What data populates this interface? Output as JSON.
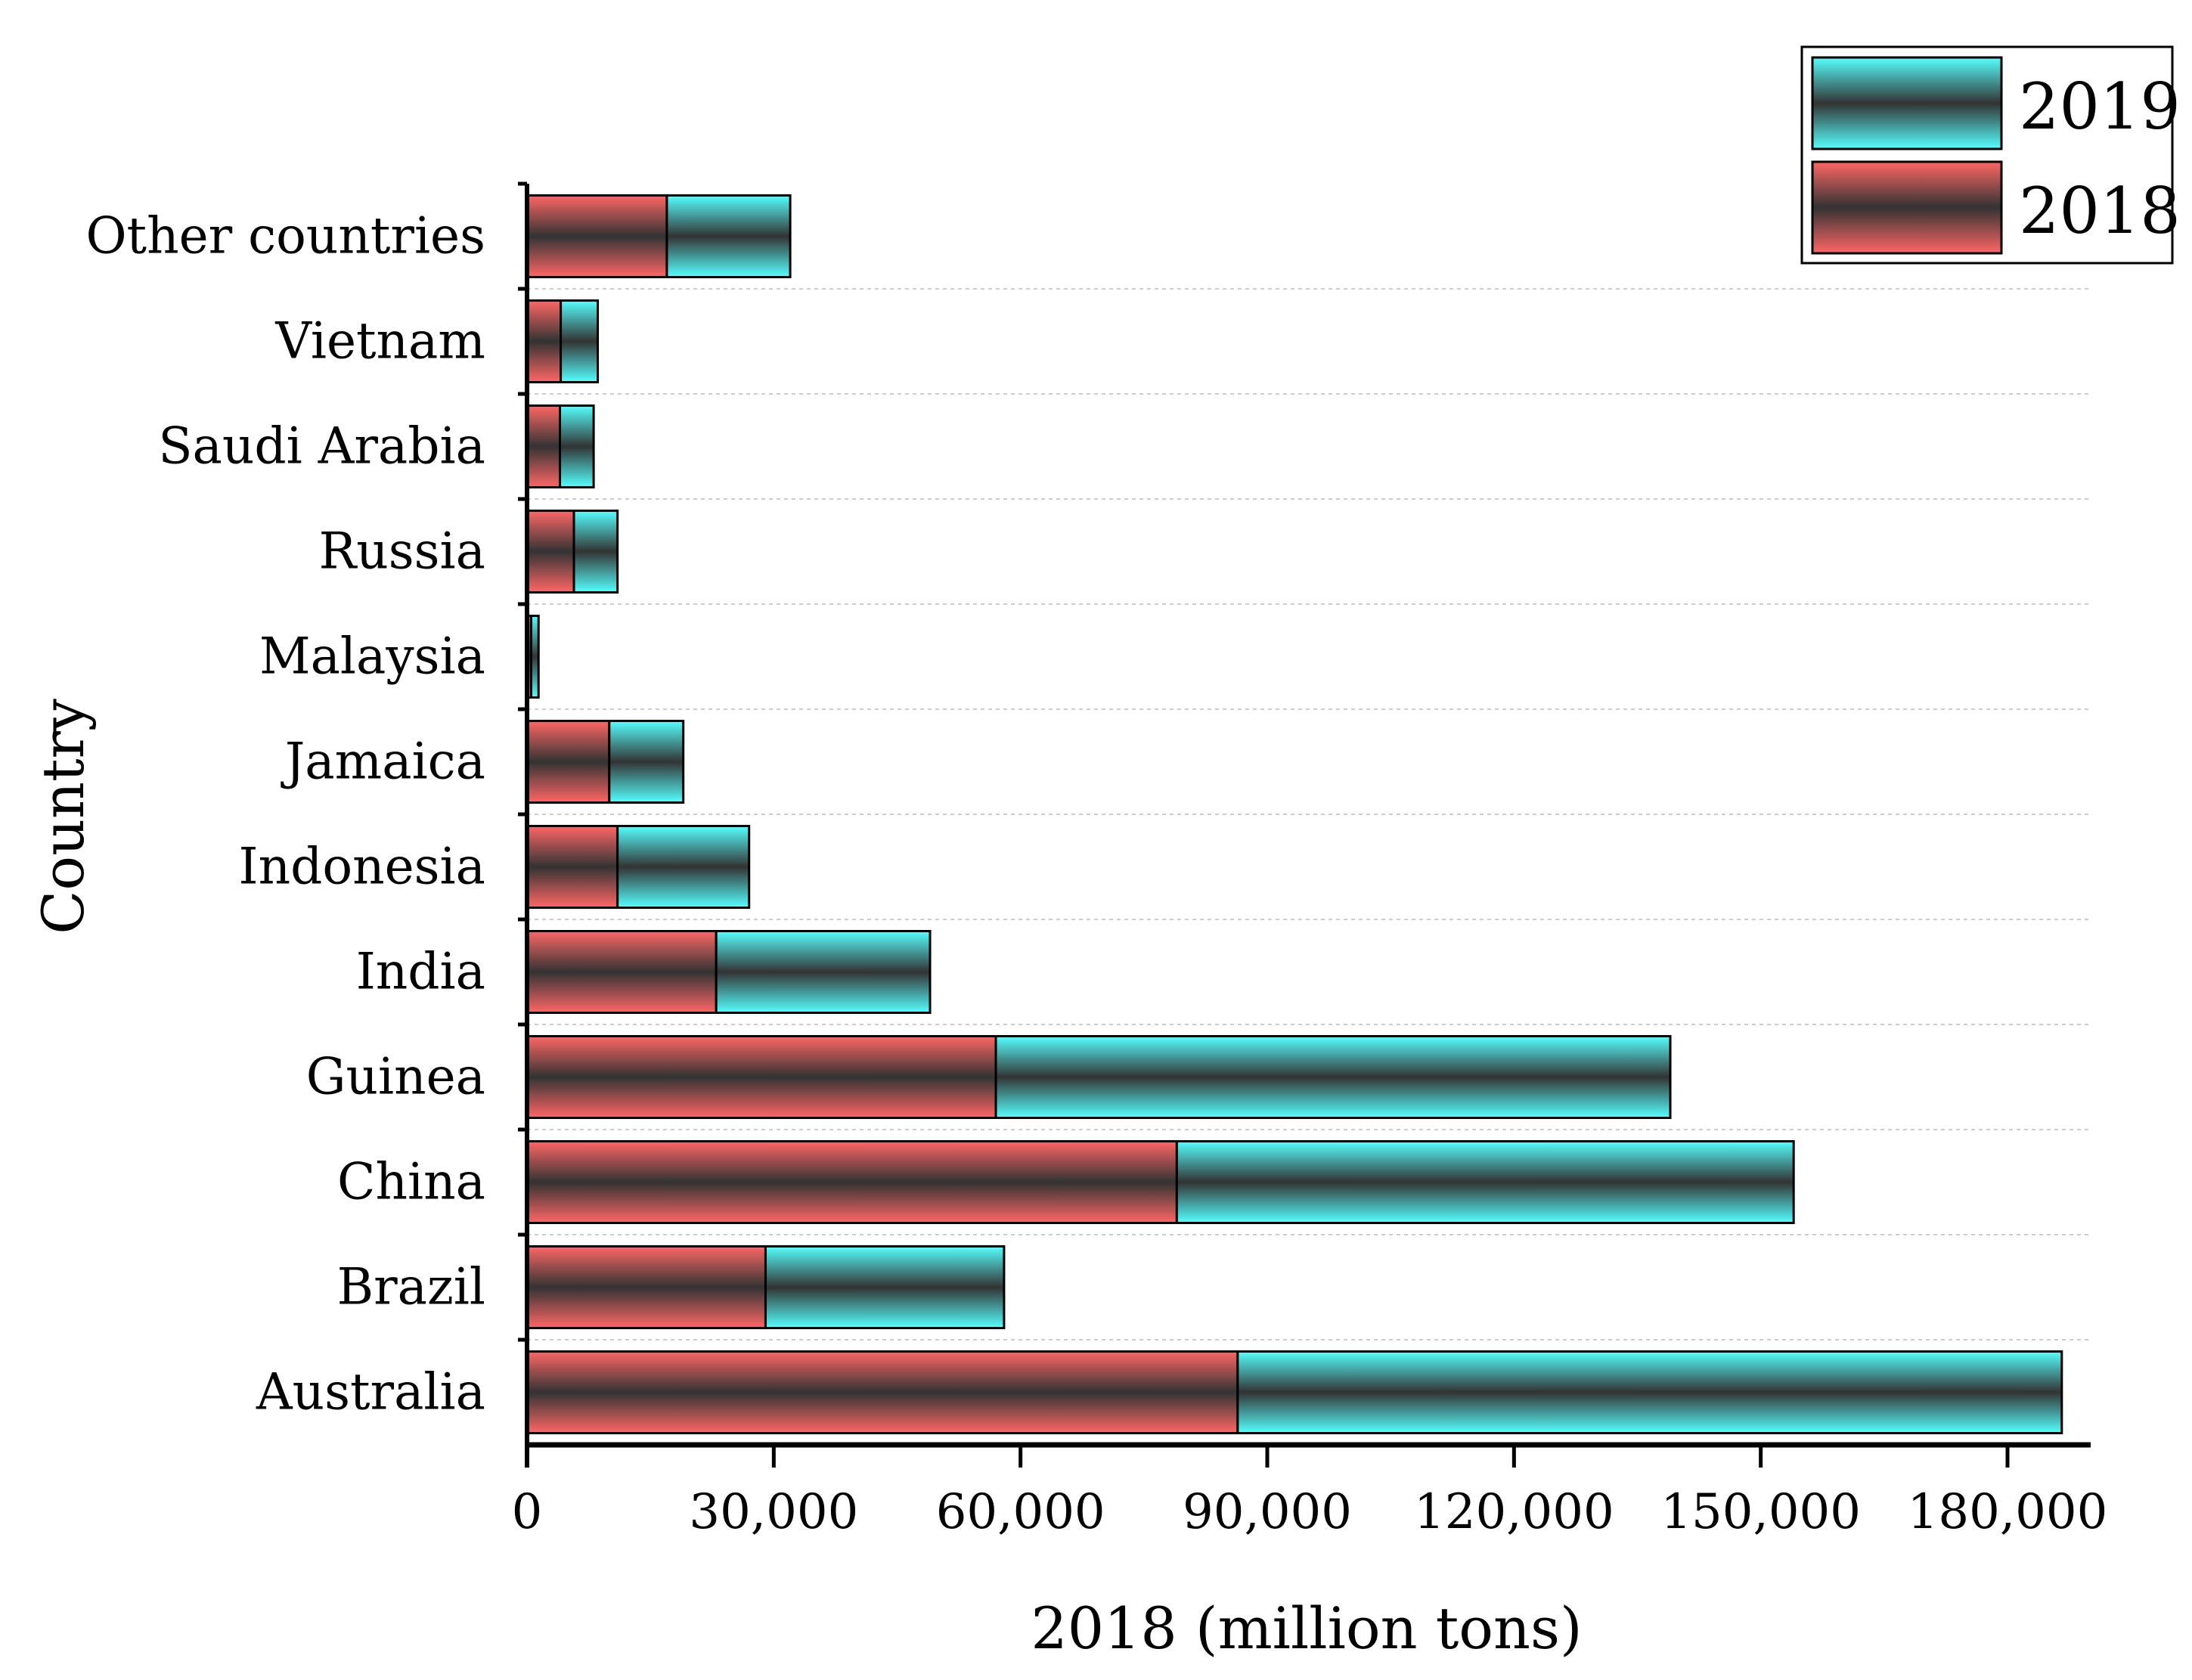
{
  "chart_data": {
    "type": "bar",
    "orientation": "horizontal",
    "stacked": true,
    "title": "",
    "xlabel": "2018 (million tons)",
    "ylabel": "Country",
    "xlim": [
      0,
      186000
    ],
    "xticks": [
      0,
      30000,
      60000,
      90000,
      120000,
      150000,
      180000
    ],
    "xtick_labels": [
      "0",
      "30,000",
      "60,000",
      "90,000",
      "120,000",
      "150,000",
      "180,000"
    ],
    "categories": [
      "Australia",
      "Brazil",
      "China",
      "Guinea",
      "India",
      "Indonesia",
      "Jamaica",
      "Malaysia",
      "Russia",
      "Saudi Arabia",
      "Vietnam",
      "Other countries"
    ],
    "series": [
      {
        "name": "2018",
        "color": "#ff6666",
        "values": [
          86400,
          29000,
          79000,
          57000,
          23000,
          11000,
          10000,
          500,
          5700,
          4000,
          4100,
          17000
        ]
      },
      {
        "name": "2019",
        "color": "#55ffff",
        "values": [
          100200,
          29000,
          75000,
          82000,
          26000,
          16000,
          9000,
          900,
          5300,
          4100,
          4500,
          15000
        ]
      }
    ],
    "legend": {
      "placement": "top-right",
      "entries": [
        "2019",
        "2018"
      ]
    },
    "grid": "horizontal dashed"
  }
}
